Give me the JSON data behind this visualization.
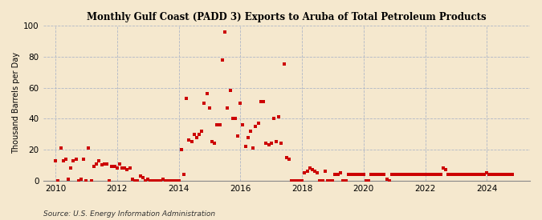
{
  "title": "Monthly Gulf Coast (PADD 3) Exports to Aruba of Total Petroleum Products",
  "ylabel": "Thousand Barrels per Day",
  "source": "Source: U.S. Energy Information Administration",
  "background_color": "#f5e8ce",
  "dot_color": "#cc0000",
  "ylim": [
    0,
    100
  ],
  "yticks": [
    0,
    20,
    40,
    60,
    80,
    100
  ],
  "xlim_min": 2009.6,
  "xlim_max": 2025.4,
  "xticks": [
    2010,
    2012,
    2014,
    2016,
    2018,
    2020,
    2022,
    2024
  ],
  "data": [
    [
      2010.0,
      13
    ],
    [
      2010.08,
      0
    ],
    [
      2010.17,
      21
    ],
    [
      2010.25,
      13
    ],
    [
      2010.33,
      14
    ],
    [
      2010.42,
      1
    ],
    [
      2010.5,
      8
    ],
    [
      2010.58,
      13
    ],
    [
      2010.67,
      14
    ],
    [
      2010.75,
      0
    ],
    [
      2010.83,
      1
    ],
    [
      2010.92,
      14
    ],
    [
      2011.0,
      0
    ],
    [
      2011.08,
      21
    ],
    [
      2011.17,
      0
    ],
    [
      2011.25,
      9
    ],
    [
      2011.33,
      11
    ],
    [
      2011.42,
      13
    ],
    [
      2011.5,
      10
    ],
    [
      2011.58,
      11
    ],
    [
      2011.67,
      11
    ],
    [
      2011.75,
      0
    ],
    [
      2011.83,
      9
    ],
    [
      2011.92,
      9
    ],
    [
      2012.0,
      8
    ],
    [
      2012.08,
      11
    ],
    [
      2012.17,
      8
    ],
    [
      2012.25,
      8
    ],
    [
      2012.33,
      7
    ],
    [
      2012.42,
      8
    ],
    [
      2012.5,
      1
    ],
    [
      2012.58,
      0
    ],
    [
      2012.67,
      0
    ],
    [
      2012.75,
      3
    ],
    [
      2012.83,
      2
    ],
    [
      2012.92,
      0
    ],
    [
      2013.0,
      1
    ],
    [
      2013.08,
      0
    ],
    [
      2013.17,
      0
    ],
    [
      2013.25,
      0
    ],
    [
      2013.33,
      0
    ],
    [
      2013.42,
      0
    ],
    [
      2013.5,
      1
    ],
    [
      2013.58,
      0
    ],
    [
      2013.67,
      0
    ],
    [
      2013.75,
      0
    ],
    [
      2013.83,
      0
    ],
    [
      2013.92,
      0
    ],
    [
      2014.0,
      0
    ],
    [
      2014.08,
      20
    ],
    [
      2014.17,
      4
    ],
    [
      2014.25,
      53
    ],
    [
      2014.33,
      26
    ],
    [
      2014.42,
      25
    ],
    [
      2014.5,
      30
    ],
    [
      2014.58,
      28
    ],
    [
      2014.67,
      30
    ],
    [
      2014.75,
      32
    ],
    [
      2014.83,
      50
    ],
    [
      2014.92,
      56
    ],
    [
      2015.0,
      47
    ],
    [
      2015.08,
      25
    ],
    [
      2015.17,
      24
    ],
    [
      2015.25,
      36
    ],
    [
      2015.33,
      36
    ],
    [
      2015.42,
      78
    ],
    [
      2015.5,
      96
    ],
    [
      2015.58,
      47
    ],
    [
      2015.67,
      58
    ],
    [
      2015.75,
      40
    ],
    [
      2015.83,
      40
    ],
    [
      2015.92,
      29
    ],
    [
      2016.0,
      50
    ],
    [
      2016.08,
      36
    ],
    [
      2016.17,
      22
    ],
    [
      2016.25,
      28
    ],
    [
      2016.33,
      32
    ],
    [
      2016.42,
      21
    ],
    [
      2016.5,
      35
    ],
    [
      2016.58,
      37
    ],
    [
      2016.67,
      51
    ],
    [
      2016.75,
      51
    ],
    [
      2016.83,
      24
    ],
    [
      2016.92,
      23
    ],
    [
      2017.0,
      24
    ],
    [
      2017.08,
      40
    ],
    [
      2017.17,
      25
    ],
    [
      2017.25,
      41
    ],
    [
      2017.33,
      24
    ],
    [
      2017.42,
      75
    ],
    [
      2017.5,
      15
    ],
    [
      2017.58,
      14
    ],
    [
      2017.67,
      0
    ],
    [
      2017.75,
      0
    ],
    [
      2017.83,
      0
    ],
    [
      2017.92,
      0
    ],
    [
      2018.0,
      0
    ],
    [
      2018.08,
      5
    ],
    [
      2018.17,
      6
    ],
    [
      2018.25,
      8
    ],
    [
      2018.33,
      7
    ],
    [
      2018.42,
      6
    ],
    [
      2018.5,
      5
    ],
    [
      2018.58,
      0
    ],
    [
      2018.67,
      0
    ],
    [
      2018.75,
      6
    ],
    [
      2018.83,
      0
    ],
    [
      2018.92,
      0
    ],
    [
      2019.0,
      0
    ],
    [
      2019.08,
      4
    ],
    [
      2019.17,
      4
    ],
    [
      2019.25,
      5
    ],
    [
      2019.33,
      0
    ],
    [
      2019.42,
      0
    ],
    [
      2019.5,
      4
    ],
    [
      2019.58,
      4
    ],
    [
      2019.67,
      4
    ],
    [
      2019.75,
      4
    ],
    [
      2019.83,
      4
    ],
    [
      2019.92,
      4
    ],
    [
      2020.0,
      4
    ],
    [
      2020.08,
      0
    ],
    [
      2020.17,
      0
    ],
    [
      2020.25,
      4
    ],
    [
      2020.33,
      4
    ],
    [
      2020.42,
      4
    ],
    [
      2020.5,
      4
    ],
    [
      2020.58,
      4
    ],
    [
      2020.67,
      4
    ],
    [
      2020.75,
      1
    ],
    [
      2020.83,
      0
    ],
    [
      2020.92,
      4
    ],
    [
      2021.0,
      4
    ],
    [
      2021.08,
      4
    ],
    [
      2021.17,
      4
    ],
    [
      2021.25,
      4
    ],
    [
      2021.33,
      4
    ],
    [
      2021.42,
      4
    ],
    [
      2021.5,
      4
    ],
    [
      2021.58,
      4
    ],
    [
      2021.67,
      4
    ],
    [
      2021.75,
      4
    ],
    [
      2021.83,
      4
    ],
    [
      2021.92,
      4
    ],
    [
      2022.0,
      4
    ],
    [
      2022.08,
      4
    ],
    [
      2022.17,
      4
    ],
    [
      2022.25,
      4
    ],
    [
      2022.33,
      4
    ],
    [
      2022.42,
      4
    ],
    [
      2022.5,
      4
    ],
    [
      2022.58,
      8
    ],
    [
      2022.67,
      7
    ],
    [
      2022.75,
      4
    ],
    [
      2022.83,
      4
    ],
    [
      2022.92,
      4
    ],
    [
      2023.0,
      4
    ],
    [
      2023.08,
      4
    ],
    [
      2023.17,
      4
    ],
    [
      2023.25,
      4
    ],
    [
      2023.33,
      4
    ],
    [
      2023.42,
      4
    ],
    [
      2023.5,
      4
    ],
    [
      2023.58,
      4
    ],
    [
      2023.67,
      4
    ],
    [
      2023.75,
      4
    ],
    [
      2023.83,
      4
    ],
    [
      2023.92,
      4
    ],
    [
      2024.0,
      5
    ],
    [
      2024.08,
      4
    ],
    [
      2024.17,
      4
    ],
    [
      2024.25,
      4
    ],
    [
      2024.33,
      4
    ],
    [
      2024.42,
      4
    ],
    [
      2024.5,
      4
    ],
    [
      2024.58,
      4
    ],
    [
      2024.67,
      4
    ],
    [
      2024.75,
      4
    ],
    [
      2024.83,
      4
    ]
  ]
}
